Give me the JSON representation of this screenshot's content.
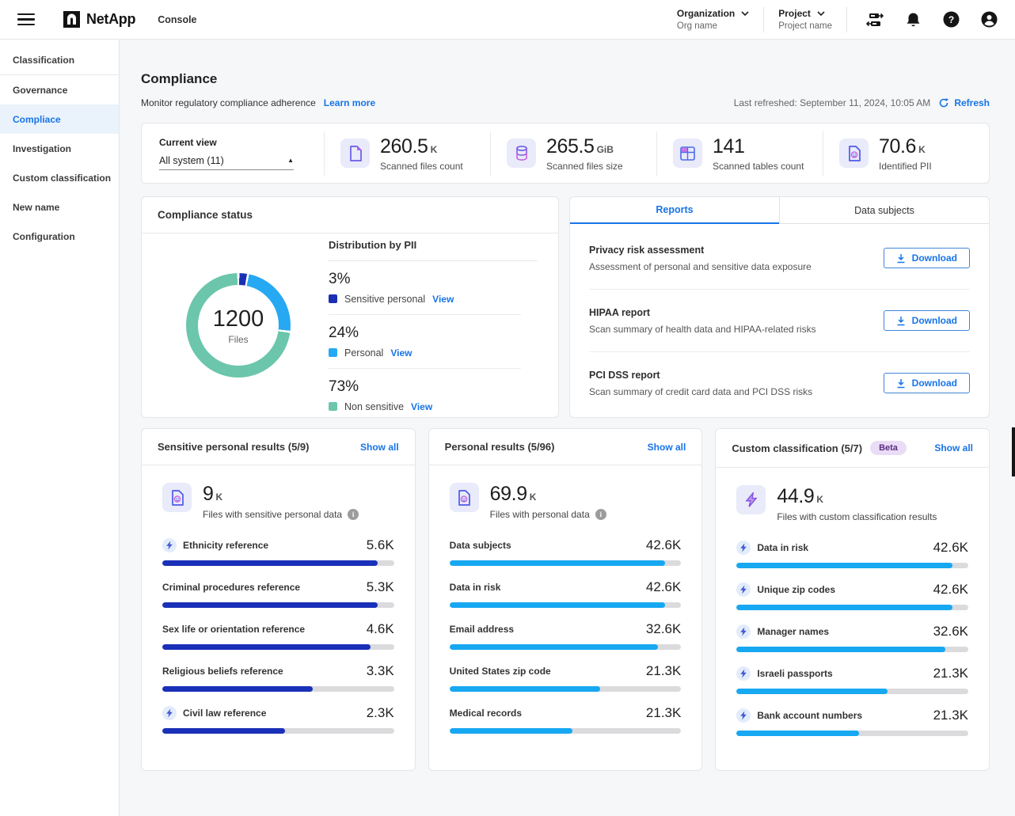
{
  "header": {
    "brand": "NetApp",
    "product": "Console",
    "organization": {
      "label": "Organization",
      "value": "Org name"
    },
    "project": {
      "label": "Project",
      "value": "Project name"
    },
    "icons": [
      "connector-icon",
      "notifications-icon",
      "help-icon",
      "user-icon"
    ]
  },
  "sidebar": {
    "items": [
      {
        "label": "Classification",
        "active": false
      },
      {
        "label": "Governance",
        "active": false
      },
      {
        "label": "Compliace",
        "active": true
      },
      {
        "label": "Investigation",
        "active": false
      },
      {
        "label": "Custom classification",
        "active": false
      },
      {
        "label": "New name",
        "active": false
      },
      {
        "label": "Configuration",
        "active": false
      }
    ]
  },
  "page": {
    "title": "Compliance",
    "subtitle": "Monitor regulatory compliance adherence",
    "learn_more": "Learn more",
    "last_refreshed": "Last refreshed: September 11, 2024, 10:05 AM",
    "refresh_label": "Refresh"
  },
  "current_view": {
    "label": "Current view",
    "value": "All system (11)"
  },
  "stats": [
    {
      "icon": "file-icon",
      "value": "260.5",
      "unit": "K",
      "label": "Scanned files count"
    },
    {
      "icon": "database-icon",
      "value": "265.5",
      "unit": "GiB",
      "label": "Scanned files size"
    },
    {
      "icon": "table-icon",
      "value": "141",
      "unit": "",
      "label": "Scanned tables count"
    },
    {
      "icon": "pii-file-icon",
      "value": "70.6",
      "unit": "K",
      "label": "Identified PII"
    }
  ],
  "compliance_status": {
    "title": "Compliance status",
    "donut": {
      "center_value": "1200",
      "center_label": "Files",
      "segments": [
        {
          "label": "Sensitive personal",
          "percent": 3,
          "color": "#1a30b3"
        },
        {
          "label": "Personal",
          "percent": 24,
          "color": "#27a8f2"
        },
        {
          "label": "Non sensitive",
          "percent": 73,
          "color": "#6bc6ab"
        }
      ]
    },
    "distribution_title": "Distribution by PII",
    "view_label": "View",
    "items": [
      {
        "percent": "3%",
        "label": "Sensitive personal"
      },
      {
        "percent": "24%",
        "label": "Personal"
      },
      {
        "percent": "73%",
        "label": "Non sensitive"
      }
    ]
  },
  "reports_card": {
    "tabs": [
      {
        "label": "Reports",
        "active": true
      },
      {
        "label": "Data subjects",
        "active": false
      }
    ],
    "download_label": "Download",
    "reports": [
      {
        "title": "Privacy risk assessment",
        "description": "Assessment of personal and sensitive data exposure"
      },
      {
        "title": "HIPAA report",
        "description": "Scan summary of health data and HIPAA-related risks"
      },
      {
        "title": "PCI DSS report",
        "description": "Scan summary of credit card data and PCI DSS risks"
      }
    ]
  },
  "result_cards": [
    {
      "title": "Sensitive personal results (5/9)",
      "show_all": "Show all",
      "badge": "",
      "bar_color": "#1a30b8",
      "total": {
        "value": "9",
        "unit": "K",
        "label": "Files with sensitive personal data",
        "info": true
      },
      "rows": [
        {
          "label": "Ethnicity reference",
          "value": "5.6K",
          "percent": 93,
          "bolt": true
        },
        {
          "label": "Criminal procedures reference",
          "value": "5.3K",
          "percent": 93,
          "bolt": false
        },
        {
          "label": "Sex life or orientation reference",
          "value": "4.6K",
          "percent": 90,
          "bolt": false
        },
        {
          "label": "Religious beliefs reference",
          "value": "3.3K",
          "percent": 65,
          "bolt": false
        },
        {
          "label": "Civil law reference",
          "value": "2.3K",
          "percent": 53,
          "bolt": true
        }
      ]
    },
    {
      "title": "Personal results (5/96)",
      "show_all": "Show all",
      "badge": "",
      "bar_color": "#17a8f2",
      "total": {
        "value": "69.9",
        "unit": "K",
        "label": "Files with personal data",
        "info": true
      },
      "rows": [
        {
          "label": "Data subjects",
          "value": "42.6K",
          "percent": 93,
          "bolt": false
        },
        {
          "label": "Data in risk",
          "value": "42.6K",
          "percent": 93,
          "bolt": false
        },
        {
          "label": "Email address",
          "value": "32.6K",
          "percent": 90,
          "bolt": false
        },
        {
          "label": "United States zip code",
          "value": "21.3K",
          "percent": 65,
          "bolt": false
        },
        {
          "label": "Medical records",
          "value": "21.3K",
          "percent": 53,
          "bolt": false
        }
      ]
    },
    {
      "title": "Custom classification (5/7)",
      "show_all": "Show all",
      "badge": "Beta",
      "bar_color": "#17a8f2",
      "total": {
        "value": "44.9",
        "unit": "K",
        "label": "Files with custom classification results",
        "info": false
      },
      "rows": [
        {
          "label": "Data in risk",
          "value": "42.6K",
          "percent": 93,
          "bolt": true
        },
        {
          "label": "Unique zip codes",
          "value": "42.6K",
          "percent": 93,
          "bolt": true
        },
        {
          "label": "Manager names",
          "value": "32.6K",
          "percent": 90,
          "bolt": true
        },
        {
          "label": "Israeli passports",
          "value": "21.3K",
          "percent": 65,
          "bolt": true
        },
        {
          "label": "Bank account numbers",
          "value": "21.3K",
          "percent": 53,
          "bolt": true
        }
      ]
    }
  ]
}
